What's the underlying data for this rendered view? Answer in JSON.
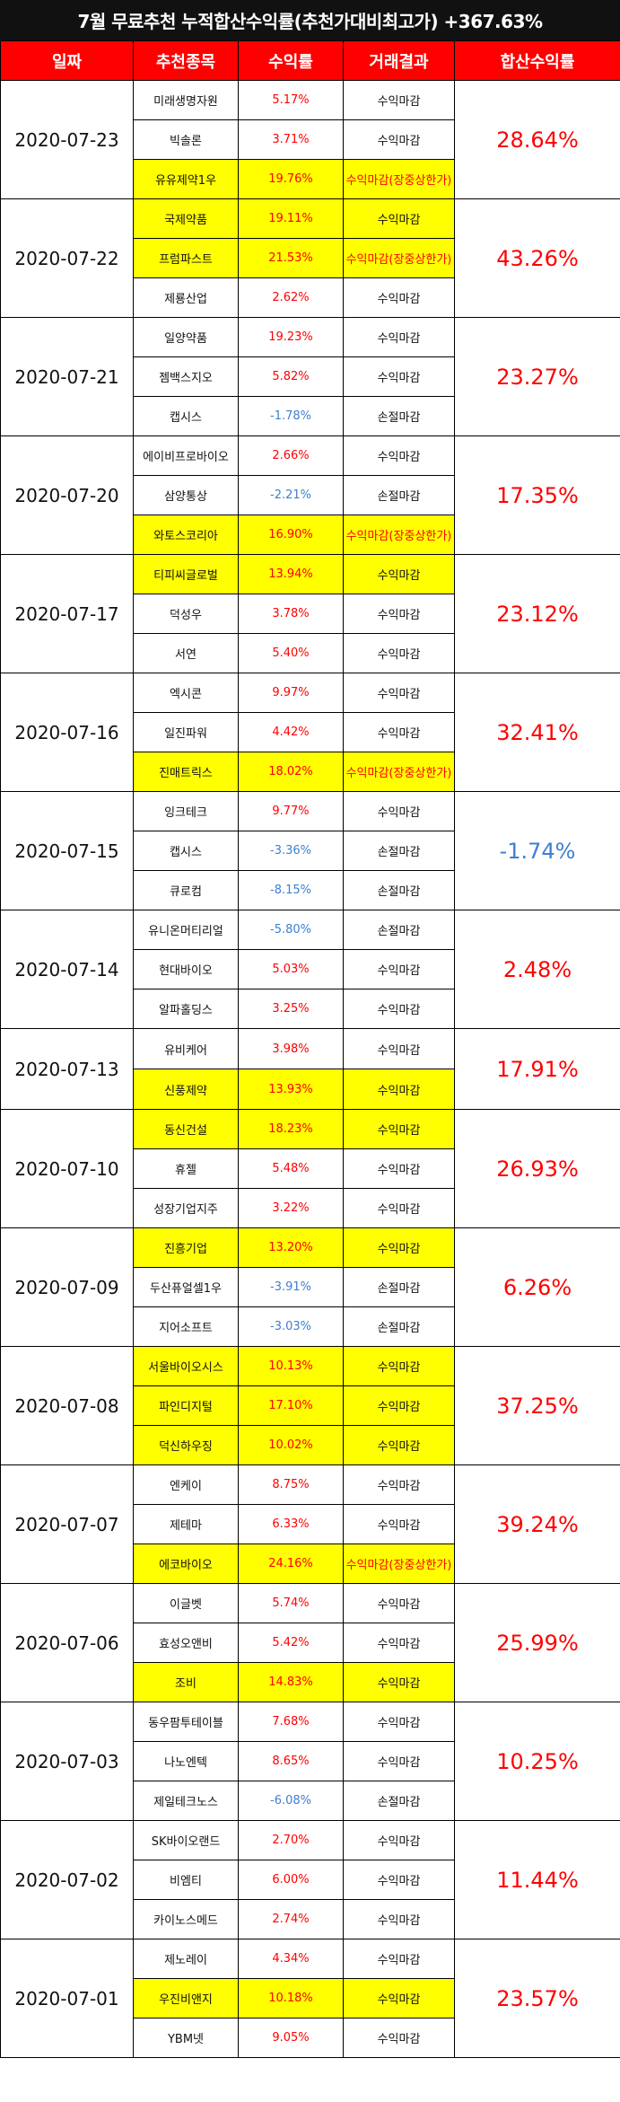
{
  "title": "7월 무료추천 누적합산수익률(추천가대비최고가) +367.63%",
  "headers": [
    "일짜",
    "추천종목",
    "수익률",
    "거래결과",
    "합산수익률"
  ],
  "colors": {
    "header_bg": "#ff0000",
    "highlight": "#ffff00",
    "positive": "#ff0000",
    "negative": "#3d7fd1",
    "banner_bg": "#111111"
  },
  "groups": [
    {
      "date": "2020-07-23",
      "total": "28.64%",
      "rows": [
        {
          "name": "미래생명자원",
          "rate": "5.17%",
          "result": "수익마감",
          "hl": false
        },
        {
          "name": "빅솔론",
          "rate": "3.71%",
          "result": "수익마감",
          "hl": false
        },
        {
          "name": "유유제약1우",
          "rate": "19.76%",
          "result": "수익마감(장중상한가)",
          "hl": true
        }
      ]
    },
    {
      "date": "2020-07-22",
      "total": "43.26%",
      "rows": [
        {
          "name": "국제약품",
          "rate": "19.11%",
          "result": "수익마감",
          "hl": true
        },
        {
          "name": "프럼파스트",
          "rate": "21.53%",
          "result": "수익마감(장중상한가)",
          "hl": true
        },
        {
          "name": "제룡산업",
          "rate": "2.62%",
          "result": "수익마감",
          "hl": false
        }
      ]
    },
    {
      "date": "2020-07-21",
      "total": "23.27%",
      "rows": [
        {
          "name": "일양약품",
          "rate": "19.23%",
          "result": "수익마감",
          "hl": false
        },
        {
          "name": "젬백스지오",
          "rate": "5.82%",
          "result": "수익마감",
          "hl": false
        },
        {
          "name": "캡시스",
          "rate": "-1.78%",
          "result": "손절마감",
          "hl": false
        }
      ]
    },
    {
      "date": "2020-07-20",
      "total": "17.35%",
      "rows": [
        {
          "name": "에이비프로바이오",
          "rate": "2.66%",
          "result": "수익마감",
          "hl": false
        },
        {
          "name": "삼양통상",
          "rate": "-2.21%",
          "result": "손절마감",
          "hl": false
        },
        {
          "name": "와토스코리아",
          "rate": "16.90%",
          "result": "수익마감(장중상한가)",
          "hl": true
        }
      ]
    },
    {
      "date": "2020-07-17",
      "total": "23.12%",
      "rows": [
        {
          "name": "티피씨글로벌",
          "rate": "13.94%",
          "result": "수익마감",
          "hl": true
        },
        {
          "name": "덕성우",
          "rate": "3.78%",
          "result": "수익마감",
          "hl": false
        },
        {
          "name": "서연",
          "rate": "5.40%",
          "result": "수익마감",
          "hl": false
        }
      ]
    },
    {
      "date": "2020-07-16",
      "total": "32.41%",
      "rows": [
        {
          "name": "엑시콘",
          "rate": "9.97%",
          "result": "수익마감",
          "hl": false
        },
        {
          "name": "일진파워",
          "rate": "4.42%",
          "result": "수익마감",
          "hl": false
        },
        {
          "name": "진매트릭스",
          "rate": "18.02%",
          "result": "수익마감(장중상한가)",
          "hl": true
        }
      ]
    },
    {
      "date": "2020-07-15",
      "total": "-1.74%",
      "rows": [
        {
          "name": "잉크테크",
          "rate": "9.77%",
          "result": "수익마감",
          "hl": false
        },
        {
          "name": "캡시스",
          "rate": "-3.36%",
          "result": "손절마감",
          "hl": false
        },
        {
          "name": "큐로컴",
          "rate": "-8.15%",
          "result": "손절마감",
          "hl": false
        }
      ]
    },
    {
      "date": "2020-07-14",
      "total": "2.48%",
      "rows": [
        {
          "name": "유니온머티리얼",
          "rate": "-5.80%",
          "result": "손절마감",
          "hl": false
        },
        {
          "name": "현대바이오",
          "rate": "5.03%",
          "result": "수익마감",
          "hl": false
        },
        {
          "name": "알파홀딩스",
          "rate": "3.25%",
          "result": "수익마감",
          "hl": false
        }
      ]
    },
    {
      "date": "2020-07-13",
      "total": "17.91%",
      "rows": [
        {
          "name": "유비케어",
          "rate": "3.98%",
          "result": "수익마감",
          "hl": false
        },
        {
          "name": "신풍제약",
          "rate": "13.93%",
          "result": "수익마감",
          "hl": true
        }
      ]
    },
    {
      "date": "2020-07-10",
      "total": "26.93%",
      "rows": [
        {
          "name": "동신건설",
          "rate": "18.23%",
          "result": "수익마감",
          "hl": true
        },
        {
          "name": "휴젤",
          "rate": "5.48%",
          "result": "수익마감",
          "hl": false
        },
        {
          "name": "성장기업지주",
          "rate": "3.22%",
          "result": "수익마감",
          "hl": false
        }
      ]
    },
    {
      "date": "2020-07-09",
      "total": "6.26%",
      "rows": [
        {
          "name": "진흥기업",
          "rate": "13.20%",
          "result": "수익마감",
          "hl": true
        },
        {
          "name": "두산퓨얼셀1우",
          "rate": "-3.91%",
          "result": "손절마감",
          "hl": false
        },
        {
          "name": "지어소프트",
          "rate": "-3.03%",
          "result": "손절마감",
          "hl": false
        }
      ]
    },
    {
      "date": "2020-07-08",
      "total": "37.25%",
      "rows": [
        {
          "name": "서울바이오시스",
          "rate": "10.13%",
          "result": "수익마감",
          "hl": true
        },
        {
          "name": "파인디지털",
          "rate": "17.10%",
          "result": "수익마감",
          "hl": true
        },
        {
          "name": "덕신하우징",
          "rate": "10.02%",
          "result": "수익마감",
          "hl": true
        }
      ]
    },
    {
      "date": "2020-07-07",
      "total": "39.24%",
      "rows": [
        {
          "name": "엔케이",
          "rate": "8.75%",
          "result": "수익마감",
          "hl": false
        },
        {
          "name": "제테마",
          "rate": "6.33%",
          "result": "수익마감",
          "hl": false
        },
        {
          "name": "에코바이오",
          "rate": "24.16%",
          "result": "수익마감(장중상한가)",
          "hl": true
        }
      ]
    },
    {
      "date": "2020-07-06",
      "total": "25.99%",
      "rows": [
        {
          "name": "이글벳",
          "rate": "5.74%",
          "result": "수익마감",
          "hl": false
        },
        {
          "name": "효성오앤비",
          "rate": "5.42%",
          "result": "수익마감",
          "hl": false
        },
        {
          "name": "조비",
          "rate": "14.83%",
          "result": "수익마감",
          "hl": true
        }
      ]
    },
    {
      "date": "2020-07-03",
      "total": "10.25%",
      "rows": [
        {
          "name": "동우팜투테이블",
          "rate": "7.68%",
          "result": "수익마감",
          "hl": false
        },
        {
          "name": "나노엔텍",
          "rate": "8.65%",
          "result": "수익마감",
          "hl": false
        },
        {
          "name": "제일테크노스",
          "rate": "-6.08%",
          "result": "손절마감",
          "hl": false
        }
      ]
    },
    {
      "date": "2020-07-02",
      "total": "11.44%",
      "rows": [
        {
          "name": "SK바이오랜드",
          "rate": "2.70%",
          "result": "수익마감",
          "hl": false
        },
        {
          "name": "비엠티",
          "rate": "6.00%",
          "result": "수익마감",
          "hl": false
        },
        {
          "name": "카이노스메드",
          "rate": "2.74%",
          "result": "수익마감",
          "hl": false
        }
      ]
    },
    {
      "date": "2020-07-01",
      "total": "23.57%",
      "rows": [
        {
          "name": "제노레이",
          "rate": "4.34%",
          "result": "수익마감",
          "hl": false
        },
        {
          "name": "우진비앤지",
          "rate": "10.18%",
          "result": "수익마감",
          "hl": true
        },
        {
          "name": "YBM넷",
          "rate": "9.05%",
          "result": "수익마감",
          "hl": false
        }
      ]
    }
  ]
}
